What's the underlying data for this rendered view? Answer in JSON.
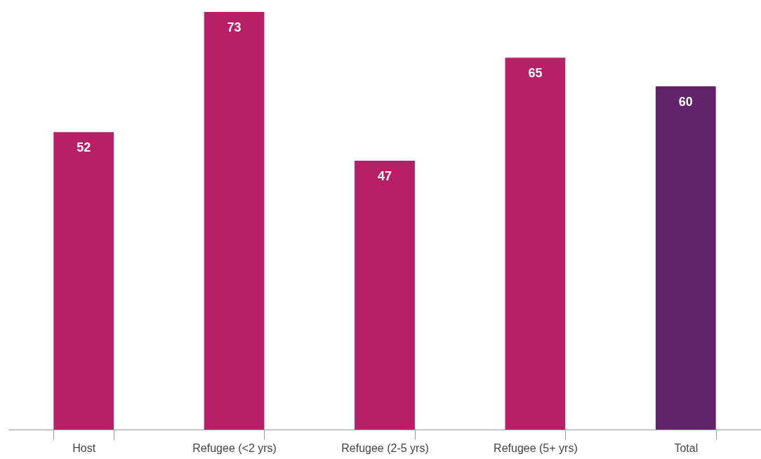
{
  "chart_data": {
    "type": "bar",
    "categories": [
      "Host",
      "Refugee (<2 yrs)",
      "Refugee (2-5 yrs)",
      "Refugee (5+ yrs)",
      "Total"
    ],
    "values": [
      52,
      73,
      47,
      65,
      60
    ],
    "colors": [
      "#b71f66",
      "#b71f66",
      "#b71f66",
      "#b71f66",
      "#62236a"
    ],
    "data_labels": true,
    "grid": false
  }
}
